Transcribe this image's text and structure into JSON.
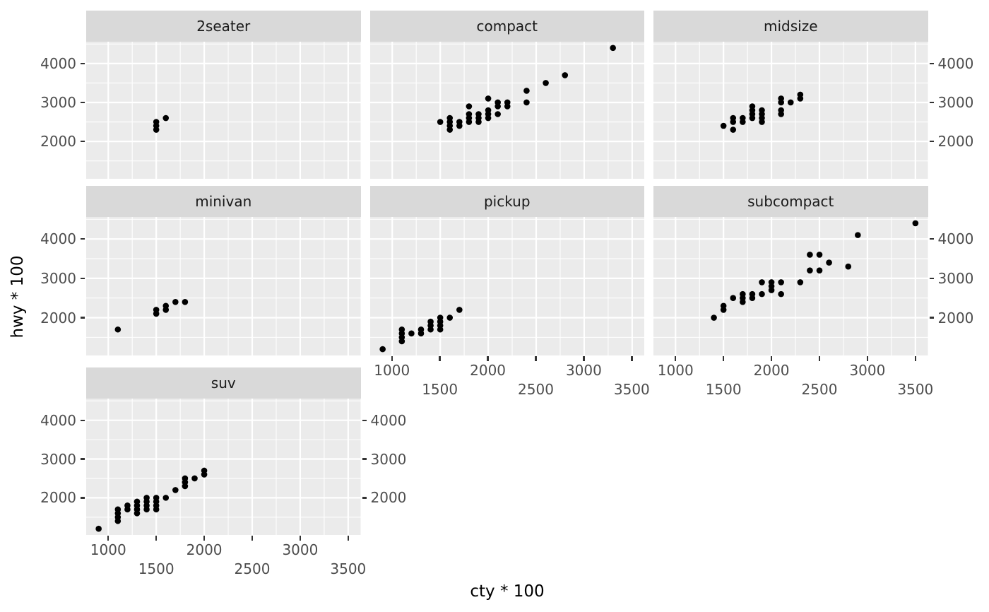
{
  "chart_data": {
    "type": "scatter",
    "title": "",
    "xlabel": "cty * 100",
    "ylabel": "hwy * 100",
    "facet_variable": "class",
    "x_domain": [
      770,
      3630
    ],
    "y_domain": [
      1040,
      4560
    ],
    "x_ticks_major": [
      1000,
      1500,
      2000,
      2500,
      3000,
      3500
    ],
    "x_minor_step": 250,
    "y_ticks_major": [
      2000,
      3000,
      4000
    ],
    "y_ticks_minor": [
      1500,
      2500,
      3500,
      4500
    ],
    "x_label_row_top": [
      1000,
      2000,
      3000
    ],
    "x_label_row_bottom": [
      1500,
      2500,
      3500
    ],
    "grid": true,
    "legend": false,
    "point_color": "#000000",
    "facets": [
      {
        "label": "2seater",
        "points": [
          [
            1500,
            2300
          ],
          [
            1500,
            2400
          ],
          [
            1500,
            2500
          ],
          [
            1600,
            2600
          ]
        ]
      },
      {
        "label": "compact",
        "points": [
          [
            1500,
            2500
          ],
          [
            1600,
            2300
          ],
          [
            1600,
            2400
          ],
          [
            1600,
            2500
          ],
          [
            1600,
            2600
          ],
          [
            1700,
            2400
          ],
          [
            1700,
            2500
          ],
          [
            1800,
            2500
          ],
          [
            1800,
            2600
          ],
          [
            1800,
            2700
          ],
          [
            1800,
            2900
          ],
          [
            1900,
            2500
          ],
          [
            1900,
            2600
          ],
          [
            1900,
            2700
          ],
          [
            2000,
            2600
          ],
          [
            2000,
            2700
          ],
          [
            2000,
            2800
          ],
          [
            2000,
            3100
          ],
          [
            2100,
            2700
          ],
          [
            2100,
            2900
          ],
          [
            2100,
            3000
          ],
          [
            2200,
            2900
          ],
          [
            2200,
            3000
          ],
          [
            2400,
            3000
          ],
          [
            2400,
            3300
          ],
          [
            2600,
            3500
          ],
          [
            2800,
            3700
          ],
          [
            3300,
            4400
          ]
        ]
      },
      {
        "label": "midsize",
        "points": [
          [
            1500,
            2400
          ],
          [
            1600,
            2300
          ],
          [
            1600,
            2500
          ],
          [
            1600,
            2600
          ],
          [
            1700,
            2500
          ],
          [
            1700,
            2600
          ],
          [
            1800,
            2600
          ],
          [
            1800,
            2700
          ],
          [
            1800,
            2800
          ],
          [
            1800,
            2900
          ],
          [
            1900,
            2500
          ],
          [
            1900,
            2600
          ],
          [
            1900,
            2700
          ],
          [
            1900,
            2800
          ],
          [
            2100,
            2700
          ],
          [
            2100,
            2800
          ],
          [
            2100,
            3000
          ],
          [
            2100,
            3100
          ],
          [
            2200,
            3000
          ],
          [
            2300,
            3100
          ],
          [
            2300,
            3200
          ]
        ]
      },
      {
        "label": "minivan",
        "points": [
          [
            1100,
            1700
          ],
          [
            1500,
            2100
          ],
          [
            1500,
            2200
          ],
          [
            1600,
            2200
          ],
          [
            1600,
            2300
          ],
          [
            1700,
            2400
          ],
          [
            1800,
            2400
          ]
        ]
      },
      {
        "label": "pickup",
        "points": [
          [
            900,
            1200
          ],
          [
            1100,
            1400
          ],
          [
            1100,
            1500
          ],
          [
            1100,
            1600
          ],
          [
            1100,
            1700
          ],
          [
            1200,
            1600
          ],
          [
            1300,
            1600
          ],
          [
            1300,
            1700
          ],
          [
            1400,
            1700
          ],
          [
            1400,
            1800
          ],
          [
            1400,
            1900
          ],
          [
            1500,
            1700
          ],
          [
            1500,
            1800
          ],
          [
            1500,
            1900
          ],
          [
            1500,
            2000
          ],
          [
            1600,
            2000
          ],
          [
            1700,
            2200
          ]
        ]
      },
      {
        "label": "subcompact",
        "points": [
          [
            1400,
            2000
          ],
          [
            1500,
            2200
          ],
          [
            1500,
            2300
          ],
          [
            1600,
            2500
          ],
          [
            1700,
            2400
          ],
          [
            1700,
            2500
          ],
          [
            1700,
            2600
          ],
          [
            1800,
            2500
          ],
          [
            1800,
            2600
          ],
          [
            1900,
            2600
          ],
          [
            1900,
            2900
          ],
          [
            2000,
            2700
          ],
          [
            2000,
            2800
          ],
          [
            2000,
            2900
          ],
          [
            2100,
            2600
          ],
          [
            2100,
            2900
          ],
          [
            2300,
            2900
          ],
          [
            2400,
            3200
          ],
          [
            2400,
            3600
          ],
          [
            2500,
            3200
          ],
          [
            2500,
            3600
          ],
          [
            2600,
            3400
          ],
          [
            2800,
            3300
          ],
          [
            2900,
            4100
          ],
          [
            3500,
            4400
          ]
        ]
      },
      {
        "label": "suv",
        "points": [
          [
            900,
            1200
          ],
          [
            1100,
            1400
          ],
          [
            1100,
            1500
          ],
          [
            1100,
            1600
          ],
          [
            1100,
            1700
          ],
          [
            1200,
            1700
          ],
          [
            1200,
            1800
          ],
          [
            1300,
            1600
          ],
          [
            1300,
            1700
          ],
          [
            1300,
            1800
          ],
          [
            1300,
            1900
          ],
          [
            1400,
            1700
          ],
          [
            1400,
            1800
          ],
          [
            1400,
            1900
          ],
          [
            1400,
            2000
          ],
          [
            1500,
            1700
          ],
          [
            1500,
            1800
          ],
          [
            1500,
            1900
          ],
          [
            1500,
            2000
          ],
          [
            1600,
            2000
          ],
          [
            1700,
            2200
          ],
          [
            1800,
            2300
          ],
          [
            1800,
            2400
          ],
          [
            1800,
            2500
          ],
          [
            1900,
            2500
          ],
          [
            2000,
            2600
          ],
          [
            2000,
            2700
          ]
        ]
      }
    ]
  },
  "colors": {
    "background": "#FFFFFF",
    "panel_bg": "#EBEBEB",
    "strip_bg": "#D9D9D9",
    "grid": "#FFFFFF",
    "point": "#000000",
    "tick_label": "#4D4D4D",
    "tick_mark": "#333333",
    "axis_title": "#000000"
  }
}
